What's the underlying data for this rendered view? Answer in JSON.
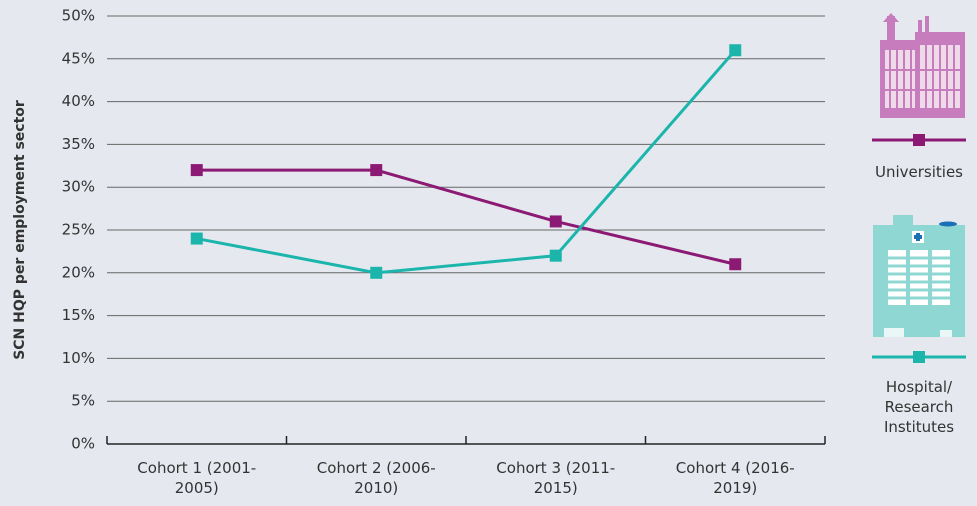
{
  "chart_data": {
    "type": "line",
    "y_label": "SCN HQP per employment sector",
    "categories": [
      "Cohort 1 (2001-2005)",
      "Cohort 2 (2006-2010)",
      "Cohort 3 (2011-2015)",
      "Cohort 4 (2016-2019)"
    ],
    "series": [
      {
        "name": "Universities",
        "color": "#8c1a74",
        "values": [
          32,
          32,
          26,
          21
        ]
      },
      {
        "name": "Hospital/ Research Institutes",
        "color": "#1bb5ac",
        "values": [
          24,
          20,
          22,
          46
        ]
      }
    ],
    "ylim": [
      0,
      50
    ],
    "yticks": [
      {
        "value": 0,
        "label": "0%"
      },
      {
        "value": 5,
        "label": "5%"
      },
      {
        "value": 10,
        "label": "10%"
      },
      {
        "value": 15,
        "label": "15%"
      },
      {
        "value": 20,
        "label": "20%"
      },
      {
        "value": 25,
        "label": "25%"
      },
      {
        "value": 30,
        "label": "30%"
      },
      {
        "value": 35,
        "label": "35%"
      },
      {
        "value": 40,
        "label": "40%"
      },
      {
        "value": 45,
        "label": "45%"
      },
      {
        "value": 50,
        "label": "50%"
      }
    ],
    "grid": true
  }
}
